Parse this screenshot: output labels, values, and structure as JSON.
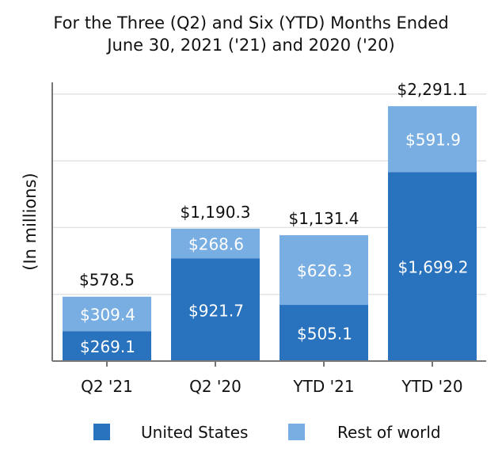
{
  "chart_data": {
    "type": "bar",
    "stacked": true,
    "title": "For the Three (Q2) and Six (YTD) Months Ended",
    "subtitle": "June 30, 2021 ('21) and 2020 ('20)",
    "xlabel": "",
    "ylabel": "(In millions)",
    "ylim": [
      0,
      2500
    ],
    "grid": true,
    "legend_position": "bottom",
    "categories": [
      "Q2 '21",
      "Q2 '20",
      "YTD '21",
      "YTD '20"
    ],
    "series": [
      {
        "name": "United States",
        "color": "#2872BE",
        "values": [
          269.1,
          921.7,
          505.1,
          1699.2
        ],
        "labels": [
          "$269.1",
          "$921.7",
          "$505.1",
          "$1,699.2"
        ]
      },
      {
        "name": "Rest of world",
        "color": "#79AEE3",
        "values": [
          309.4,
          268.6,
          626.3,
          591.9
        ],
        "labels": [
          "$309.4",
          "$268.6",
          "$626.3",
          "$591.9"
        ]
      }
    ],
    "totals": [
      578.5,
      1190.3,
      1131.4,
      2291.1
    ],
    "total_labels": [
      "$578.5",
      "$1,190.3",
      "$1,131.4",
      "$2,291.1"
    ]
  }
}
